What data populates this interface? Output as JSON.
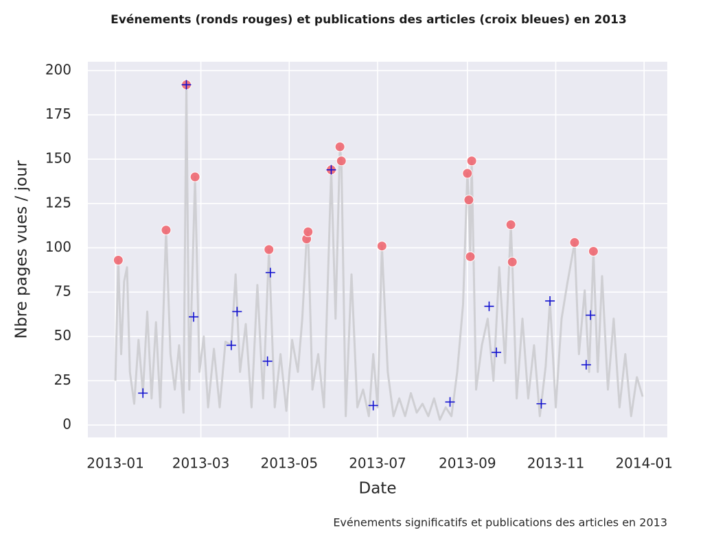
{
  "chart_data": {
    "type": "line",
    "title": "Evénements (ronds rouges) et publications des articles (croix bleues) en 2013",
    "xlabel": "Date",
    "ylabel": "Nbre pages vues / jour",
    "caption": "Evénements significatifs et publications des articles en 2013",
    "xlim": [
      "2012-12-13",
      "2014-01-17"
    ],
    "xticks": [
      {
        "value": "2013-01-01",
        "label": "2013-01"
      },
      {
        "value": "2013-03-01",
        "label": "2013-03"
      },
      {
        "value": "2013-05-01",
        "label": "2013-05"
      },
      {
        "value": "2013-07-01",
        "label": "2013-07"
      },
      {
        "value": "2013-09-01",
        "label": "2013-09"
      },
      {
        "value": "2013-11-01",
        "label": "2013-11"
      },
      {
        "value": "2014-01-01",
        "label": "2014-01"
      }
    ],
    "ylim": [
      -7,
      205
    ],
    "yticks": [
      0,
      25,
      50,
      75,
      100,
      125,
      150,
      175,
      200
    ],
    "grid": true,
    "series": [
      {
        "type": "line",
        "color": "#cfcfd3",
        "x": [
          "2013-01-01",
          "2013-01-03",
          "2013-01-05",
          "2013-01-07",
          "2013-01-09",
          "2013-01-11",
          "2013-01-14",
          "2013-01-17",
          "2013-01-20",
          "2013-01-23",
          "2013-01-26",
          "2013-01-29",
          "2013-02-01",
          "2013-02-05",
          "2013-02-08",
          "2013-02-11",
          "2013-02-14",
          "2013-02-17",
          "2013-02-19",
          "2013-02-21",
          "2013-02-25",
          "2013-02-28",
          "2013-03-03",
          "2013-03-06",
          "2013-03-10",
          "2013-03-14",
          "2013-03-18",
          "2013-03-22",
          "2013-03-25",
          "2013-03-28",
          "2013-04-01",
          "2013-04-05",
          "2013-04-09",
          "2013-04-13",
          "2013-04-17",
          "2013-04-21",
          "2013-04-25",
          "2013-04-29",
          "2013-05-03",
          "2013-05-07",
          "2013-05-10",
          "2013-05-13",
          "2013-05-14",
          "2013-05-17",
          "2013-05-21",
          "2013-05-25",
          "2013-05-30",
          "2013-06-02",
          "2013-06-05",
          "2013-06-06",
          "2013-06-09",
          "2013-06-13",
          "2013-06-17",
          "2013-06-21",
          "2013-06-25",
          "2013-06-28",
          "2013-07-01",
          "2013-07-04",
          "2013-07-08",
          "2013-07-12",
          "2013-07-16",
          "2013-07-20",
          "2013-07-24",
          "2013-07-28",
          "2013-08-01",
          "2013-08-05",
          "2013-08-09",
          "2013-08-13",
          "2013-08-17",
          "2013-08-21",
          "2013-08-25",
          "2013-08-29",
          "2013-09-01",
          "2013-09-02",
          "2013-09-03",
          "2013-09-04",
          "2013-09-07",
          "2013-09-11",
          "2013-09-15",
          "2013-09-19",
          "2013-09-23",
          "2013-09-27",
          "2013-10-01",
          "2013-10-02",
          "2013-10-05",
          "2013-10-09",
          "2013-10-13",
          "2013-10-17",
          "2013-10-21",
          "2013-10-25",
          "2013-10-28",
          "2013-11-01",
          "2013-11-05",
          "2013-11-09",
          "2013-11-14",
          "2013-11-17",
          "2013-11-21",
          "2013-11-24",
          "2013-11-27",
          "2013-11-30",
          "2013-12-03",
          "2013-12-07",
          "2013-12-11",
          "2013-12-15",
          "2013-12-19",
          "2013-12-23",
          "2013-12-27",
          "2013-12-31"
        ],
        "values": [
          25,
          93,
          40,
          81,
          89,
          30,
          12,
          48,
          18,
          64,
          15,
          58,
          10,
          110,
          40,
          20,
          45,
          7,
          192,
          20,
          140,
          30,
          50,
          10,
          43,
          10,
          47,
          45,
          85,
          30,
          57,
          10,
          79,
          15,
          99,
          10,
          40,
          8,
          48,
          30,
          60,
          105,
          109,
          20,
          40,
          10,
          144,
          60,
          157,
          149,
          5,
          85,
          10,
          20,
          5,
          40,
          10,
          101,
          30,
          5,
          15,
          5,
          18,
          7,
          12,
          5,
          15,
          3,
          10,
          5,
          30,
          68,
          142,
          127,
          95,
          149,
          20,
          45,
          60,
          25,
          89,
          35,
          113,
          92,
          15,
          60,
          15,
          45,
          5,
          33,
          70,
          10,
          60,
          80,
          103,
          40,
          76,
          30,
          98,
          30,
          84,
          20,
          60,
          10,
          40,
          5,
          27,
          16
        ]
      },
      {
        "type": "scatter",
        "marker": "circle",
        "color": "#f0606a",
        "x": [
          "2013-01-03",
          "2013-02-05",
          "2013-02-19",
          "2013-02-25",
          "2013-04-17",
          "2013-05-13",
          "2013-05-14",
          "2013-05-30",
          "2013-06-05",
          "2013-06-06",
          "2013-07-04",
          "2013-09-01",
          "2013-09-02",
          "2013-09-03",
          "2013-09-04",
          "2013-10-01",
          "2013-10-02",
          "2013-11-14",
          "2013-11-27"
        ],
        "values": [
          93,
          110,
          192,
          140,
          99,
          105,
          109,
          144,
          157,
          149,
          101,
          142,
          127,
          95,
          149,
          113,
          92,
          103,
          98
        ]
      },
      {
        "type": "scatter",
        "marker": "plus",
        "color": "#1010d0",
        "x": [
          "2013-01-20",
          "2013-02-19",
          "2013-02-24",
          "2013-03-22",
          "2013-03-26",
          "2013-04-16",
          "2013-04-18",
          "2013-05-30",
          "2013-06-28",
          "2013-08-20",
          "2013-09-16",
          "2013-09-21",
          "2013-10-22",
          "2013-10-28",
          "2013-11-22",
          "2013-11-25"
        ],
        "values": [
          18,
          192,
          61,
          45,
          64,
          36,
          86,
          144,
          11,
          13,
          67,
          41,
          12,
          70,
          34,
          62
        ]
      }
    ]
  }
}
